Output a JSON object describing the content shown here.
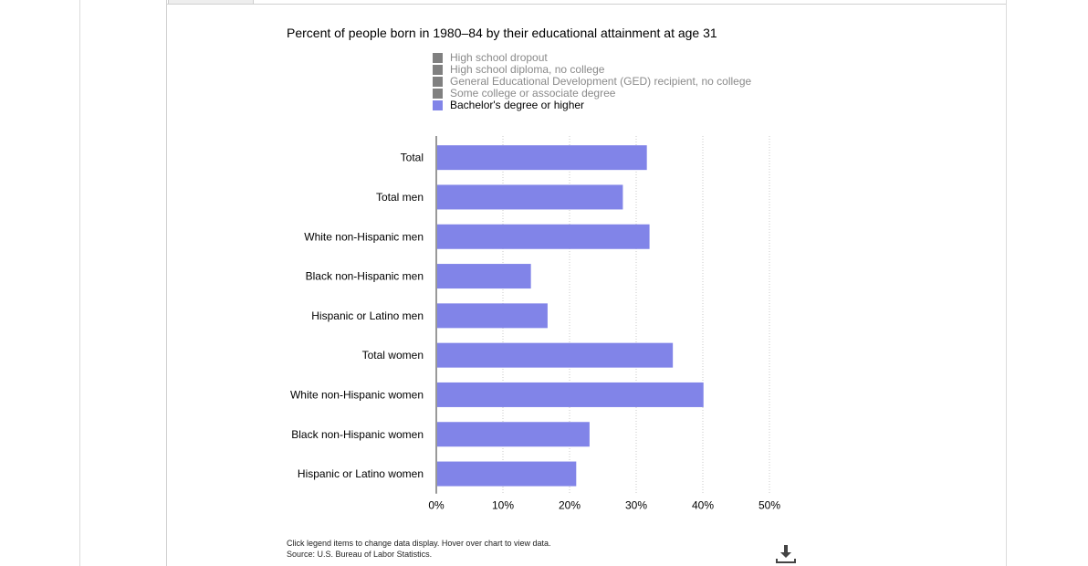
{
  "title": "Percent of people born in 1980–84 by their educational attainment at age 31",
  "legend": [
    {
      "label": "High school dropout",
      "color": "#808080",
      "text_color": "#8a8a8a"
    },
    {
      "label": "High school diploma, no college",
      "color": "#808080",
      "text_color": "#8a8a8a"
    },
    {
      "label": "General Educational Development (GED) recipient, no college",
      "color": "#808080",
      "text_color": "#8a8a8a"
    },
    {
      "label": "Some college or associate degree",
      "color": "#808080",
      "text_color": "#8a8a8a"
    },
    {
      "label": "Bachelor's degree or higher",
      "color": "#8184e8",
      "text_color": "#000000"
    }
  ],
  "chart_data": {
    "type": "bar",
    "orientation": "horizontal",
    "title": "Percent of people born in 1980–84 by their educational attainment at age 31",
    "categories": [
      "Total",
      "Total men",
      "White non-Hispanic men",
      "Black non-Hispanic men",
      "Hispanic or Latino men",
      "Total women",
      "White non-Hispanic women",
      "Black non-Hispanic women",
      "Hispanic or Latino women"
    ],
    "series": [
      {
        "name": "Bachelor's degree or higher",
        "color": "#8184e8",
        "values": [
          31.6,
          28.0,
          32.0,
          14.2,
          16.7,
          35.5,
          40.1,
          23.0,
          21.0
        ]
      }
    ],
    "xlim": [
      0,
      50
    ],
    "x_ticks": [
      "0%",
      "10%",
      "20%",
      "30%",
      "40%",
      "50%"
    ],
    "grid": true,
    "legend_position": "top"
  },
  "footer": {
    "note": "Click legend items to change data display. Hover over chart to view data.",
    "source": "Source: U.S. Bureau of Labor Statistics."
  },
  "icons": {
    "download": "download-icon"
  }
}
